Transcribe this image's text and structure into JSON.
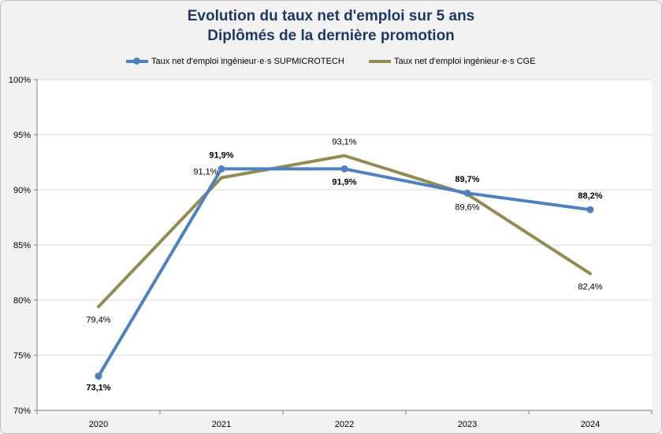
{
  "chart_data": {
    "type": "line",
    "title": [
      "Evolution du taux net d'emploi sur 5 ans",
      "Diplômés de la dernière promotion"
    ],
    "xlabel": "",
    "ylabel": "",
    "categories": [
      "2020",
      "2021",
      "2022",
      "2023",
      "2024"
    ],
    "ylim": [
      70,
      100
    ],
    "yticks": [
      70,
      75,
      80,
      85,
      90,
      95,
      100
    ],
    "ytick_labels": [
      "70%",
      "75%",
      "80%",
      "85%",
      "90%",
      "95%",
      "100%"
    ],
    "grid": true,
    "legend_position": "top",
    "series": [
      {
        "name": "Taux net d'emploi ingénieur·e·s SUPMICROTECH",
        "values": [
          73.1,
          91.9,
          91.9,
          89.7,
          88.2
        ],
        "labels": [
          "73,1%",
          "91,9%",
          "91,9%",
          "89,7%",
          "88,2%"
        ],
        "color": "#4f81bd",
        "markers": true,
        "bold_labels": true
      },
      {
        "name": "Taux net d'emploi ingénieur·e·s CGE",
        "values": [
          79.4,
          91.1,
          93.1,
          89.6,
          82.4
        ],
        "labels": [
          "79,4%",
          "91,1%",
          "93,1%",
          "89,6%",
          "82,4%"
        ],
        "color": "#948a54",
        "markers": false,
        "bold_labels": false
      }
    ]
  }
}
